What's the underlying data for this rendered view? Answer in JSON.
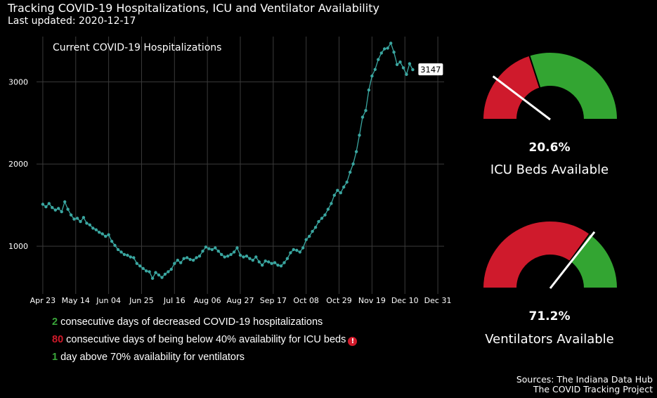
{
  "header": {
    "title": "Tracking COVID-19 Hospitalizations, ICU and Ventilator Availability",
    "subtitle": "Last updated: 2020-12-17"
  },
  "chart_data": {
    "type": "line",
    "title": "Current COVID-19 Hospitalizations",
    "xlabel": "",
    "ylabel": "",
    "x_tick_labels": [
      "Apr 23",
      "May 14",
      "Jun 04",
      "Jun 25",
      "Jul 16",
      "Aug 06",
      "Aug 27",
      "Sep 17",
      "Oct 08",
      "Oct 29",
      "Nov 19",
      "Dec 10",
      "Dec 31"
    ],
    "x_ticks": [
      "2020-04-23",
      "2020-05-14",
      "2020-06-04",
      "2020-06-25",
      "2020-07-16",
      "2020-08-06",
      "2020-08-27",
      "2020-09-17",
      "2020-10-08",
      "2020-10-29",
      "2020-11-19",
      "2020-12-10",
      "2020-12-31"
    ],
    "y_ticks": [
      1000,
      2000,
      3000
    ],
    "xlim": [
      "2020-04-19",
      "2021-01-04"
    ],
    "ylim": [
      420,
      3550
    ],
    "grid": true,
    "color": "#3aa6a0",
    "last_value_label": "3147",
    "series": [
      {
        "name": "",
        "points": [
          [
            "2020-04-23",
            1510
          ],
          [
            "2020-04-25",
            1480
          ],
          [
            "2020-04-27",
            1520
          ],
          [
            "2020-04-29",
            1470
          ],
          [
            "2020-05-01",
            1440
          ],
          [
            "2020-05-03",
            1460
          ],
          [
            "2020-05-05",
            1420
          ],
          [
            "2020-05-07",
            1540
          ],
          [
            "2020-05-09",
            1450
          ],
          [
            "2020-05-11",
            1380
          ],
          [
            "2020-05-13",
            1330
          ],
          [
            "2020-05-15",
            1340
          ],
          [
            "2020-05-17",
            1300
          ],
          [
            "2020-05-19",
            1350
          ],
          [
            "2020-05-21",
            1280
          ],
          [
            "2020-05-23",
            1260
          ],
          [
            "2020-05-25",
            1220
          ],
          [
            "2020-05-27",
            1200
          ],
          [
            "2020-05-29",
            1170
          ],
          [
            "2020-05-31",
            1150
          ],
          [
            "2020-06-02",
            1120
          ],
          [
            "2020-06-04",
            1140
          ],
          [
            "2020-06-06",
            1060
          ],
          [
            "2020-06-08",
            1010
          ],
          [
            "2020-06-10",
            960
          ],
          [
            "2020-06-12",
            930
          ],
          [
            "2020-06-14",
            900
          ],
          [
            "2020-06-16",
            890
          ],
          [
            "2020-06-18",
            870
          ],
          [
            "2020-06-20",
            860
          ],
          [
            "2020-06-22",
            790
          ],
          [
            "2020-06-24",
            760
          ],
          [
            "2020-06-26",
            730
          ],
          [
            "2020-06-28",
            700
          ],
          [
            "2020-06-30",
            690
          ],
          [
            "2020-07-02",
            610
          ],
          [
            "2020-07-04",
            680
          ],
          [
            "2020-07-06",
            650
          ],
          [
            "2020-07-08",
            620
          ],
          [
            "2020-07-10",
            660
          ],
          [
            "2020-07-12",
            690
          ],
          [
            "2020-07-14",
            720
          ],
          [
            "2020-07-16",
            790
          ],
          [
            "2020-07-18",
            830
          ],
          [
            "2020-07-20",
            800
          ],
          [
            "2020-07-22",
            850
          ],
          [
            "2020-07-24",
            860
          ],
          [
            "2020-07-26",
            840
          ],
          [
            "2020-07-28",
            830
          ],
          [
            "2020-07-30",
            860
          ],
          [
            "2020-08-01",
            880
          ],
          [
            "2020-08-03",
            940
          ],
          [
            "2020-08-05",
            990
          ],
          [
            "2020-08-07",
            970
          ],
          [
            "2020-08-09",
            960
          ],
          [
            "2020-08-11",
            980
          ],
          [
            "2020-08-13",
            940
          ],
          [
            "2020-08-15",
            900
          ],
          [
            "2020-08-17",
            870
          ],
          [
            "2020-08-19",
            880
          ],
          [
            "2020-08-21",
            900
          ],
          [
            "2020-08-23",
            930
          ],
          [
            "2020-08-25",
            980
          ],
          [
            "2020-08-27",
            890
          ],
          [
            "2020-08-29",
            870
          ],
          [
            "2020-08-31",
            880
          ],
          [
            "2020-09-02",
            850
          ],
          [
            "2020-09-04",
            830
          ],
          [
            "2020-09-06",
            870
          ],
          [
            "2020-09-08",
            810
          ],
          [
            "2020-09-10",
            770
          ],
          [
            "2020-09-12",
            820
          ],
          [
            "2020-09-14",
            810
          ],
          [
            "2020-09-16",
            790
          ],
          [
            "2020-09-18",
            800
          ],
          [
            "2020-09-20",
            770
          ],
          [
            "2020-09-22",
            760
          ],
          [
            "2020-09-24",
            800
          ],
          [
            "2020-09-26",
            850
          ],
          [
            "2020-09-28",
            920
          ],
          [
            "2020-09-30",
            960
          ],
          [
            "2020-10-02",
            950
          ],
          [
            "2020-10-04",
            930
          ],
          [
            "2020-10-06",
            980
          ],
          [
            "2020-10-08",
            1080
          ],
          [
            "2020-10-10",
            1120
          ],
          [
            "2020-10-12",
            1180
          ],
          [
            "2020-10-14",
            1230
          ],
          [
            "2020-10-16",
            1300
          ],
          [
            "2020-10-18",
            1340
          ],
          [
            "2020-10-20",
            1380
          ],
          [
            "2020-10-22",
            1450
          ],
          [
            "2020-10-24",
            1520
          ],
          [
            "2020-10-26",
            1620
          ],
          [
            "2020-10-28",
            1680
          ],
          [
            "2020-10-30",
            1650
          ],
          [
            "2020-11-01",
            1720
          ],
          [
            "2020-11-03",
            1780
          ],
          [
            "2020-11-05",
            1900
          ],
          [
            "2020-11-07",
            2000
          ],
          [
            "2020-11-09",
            2150
          ],
          [
            "2020-11-11",
            2350
          ],
          [
            "2020-11-13",
            2570
          ],
          [
            "2020-11-15",
            2650
          ],
          [
            "2020-11-17",
            2900
          ],
          [
            "2020-11-19",
            3070
          ],
          [
            "2020-11-21",
            3150
          ],
          [
            "2020-11-23",
            3270
          ],
          [
            "2020-11-25",
            3350
          ],
          [
            "2020-11-27",
            3400
          ],
          [
            "2020-11-29",
            3410
          ],
          [
            "2020-12-01",
            3470
          ],
          [
            "2020-12-03",
            3360
          ],
          [
            "2020-12-05",
            3210
          ],
          [
            "2020-12-07",
            3240
          ],
          [
            "2020-12-09",
            3170
          ],
          [
            "2020-12-11",
            3090
          ],
          [
            "2020-12-13",
            3220
          ],
          [
            "2020-12-15",
            3147
          ]
        ]
      }
    ]
  },
  "gauges": [
    {
      "value_label": "20.6%",
      "fraction": 0.206,
      "label": "ICU Beds Available",
      "threshold": 0.4
    },
    {
      "value_label": "71.2%",
      "fraction": 0.712,
      "label": "Ventilators Available",
      "threshold": 0.7
    }
  ],
  "stats": [
    {
      "num": "2",
      "color": "#3aa63a",
      "text": "consecutive days of decreased COVID-19 hospitalizations",
      "warn": false
    },
    {
      "num": "80",
      "color": "#d11a2a",
      "text": "consecutive days of being below 40% availability for ICU beds",
      "warn": true,
      "warn_glyph": "!"
    },
    {
      "num": "1",
      "color": "#3aa63a",
      "text": "day above 70% availability for ventilators",
      "warn": false
    }
  ],
  "colors": {
    "green": "#33a532",
    "red": "#cf1a2c",
    "line": "#3aa6a0"
  },
  "sources": [
    "Sources: The Indiana Data Hub",
    "The COVID Tracking Project"
  ]
}
